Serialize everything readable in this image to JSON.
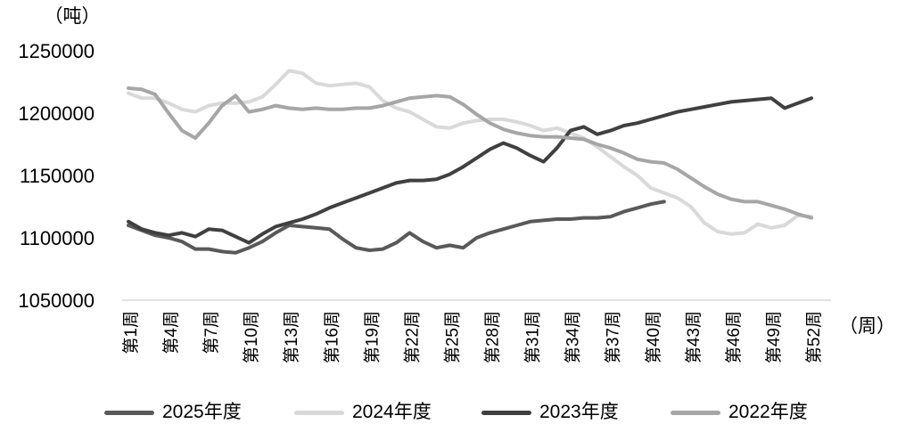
{
  "chart_data": {
    "type": "line",
    "title": "",
    "unit_y_label": "（吨）",
    "unit_x_label": "（周）",
    "grid": false,
    "legend_position": "bottom",
    "ylim": [
      1050000,
      1250000
    ],
    "y_ticks": [
      1050000,
      1100000,
      1150000,
      1200000,
      1250000
    ],
    "x_tick_weeks": [
      1,
      4,
      7,
      10,
      13,
      16,
      19,
      22,
      25,
      28,
      31,
      34,
      37,
      40,
      43,
      46,
      49,
      52
    ],
    "x_tick_labels": [
      "第1周",
      "第4周",
      "第7周",
      "第10周",
      "第13周",
      "第16周",
      "第19周",
      "第22周",
      "第25周",
      "第28周",
      "第31周",
      "第34周",
      "第37周",
      "第40周",
      "第43周",
      "第46周",
      "第49周",
      "第52周"
    ],
    "x_unit": "week",
    "x_start_week": 1,
    "series": [
      {
        "name": "2025年度",
        "color": "#595959",
        "values": [
          1110000,
          1106000,
          1102000,
          1100000,
          1097000,
          1091000,
          1091000,
          1089000,
          1088000,
          1092000,
          1097000,
          1104000,
          1110000,
          1109000,
          1108000,
          1107000,
          1099000,
          1092000,
          1090000,
          1091000,
          1096000,
          1104000,
          1097000,
          1092000,
          1094000,
          1092000,
          1100000,
          1104000,
          1107000,
          1110000,
          1113000,
          1114000,
          1115000,
          1115000,
          1116000,
          1116000,
          1117000,
          1121000,
          1124000,
          1127000,
          1129000
        ]
      },
      {
        "name": "2024年度",
        "color": "#D9D9D9",
        "values": [
          1216000,
          1212000,
          1212000,
          1208000,
          1203000,
          1201000,
          1206000,
          1208000,
          1208000,
          1209000,
          1213000,
          1223000,
          1234000,
          1232000,
          1224000,
          1222000,
          1223000,
          1224000,
          1221000,
          1210000,
          1204000,
          1201000,
          1195000,
          1189000,
          1188000,
          1192000,
          1194000,
          1195000,
          1195000,
          1193000,
          1190000,
          1186000,
          1188000,
          1184000,
          1180000,
          1173000,
          1165000,
          1157000,
          1150000,
          1140000,
          1136000,
          1132000,
          1125000,
          1112000,
          1105000,
          1103000,
          1104000,
          1111000,
          1108000,
          1110000,
          1118000,
          1117000
        ]
      },
      {
        "name": "2023年度",
        "color": "#404040",
        "values": [
          1113000,
          1107000,
          1104000,
          1102000,
          1104000,
          1101000,
          1107000,
          1106000,
          1101000,
          1096000,
          1103000,
          1109000,
          1112000,
          1115000,
          1119000,
          1124000,
          1128000,
          1132000,
          1136000,
          1140000,
          1144000,
          1146000,
          1146000,
          1147000,
          1151000,
          1157000,
          1164000,
          1171000,
          1176000,
          1172000,
          1166000,
          1161000,
          1172000,
          1186000,
          1189000,
          1183000,
          1186000,
          1190000,
          1192000,
          1195000,
          1198000,
          1201000,
          1203000,
          1205000,
          1207000,
          1209000,
          1210000,
          1211000,
          1212000,
          1204000,
          1208000,
          1212000
        ]
      },
      {
        "name": "2022年度",
        "color": "#A6A6A6",
        "values": [
          1220000,
          1219000,
          1215000,
          1200000,
          1186000,
          1180000,
          1192000,
          1206000,
          1214000,
          1201000,
          1203000,
          1206000,
          1204000,
          1203000,
          1204000,
          1203000,
          1203000,
          1204000,
          1204000,
          1206000,
          1209000,
          1212000,
          1213000,
          1214000,
          1213000,
          1207000,
          1199000,
          1192000,
          1187000,
          1184000,
          1182000,
          1181000,
          1181000,
          1180000,
          1179000,
          1175000,
          1172000,
          1168000,
          1163000,
          1161000,
          1160000,
          1155000,
          1148000,
          1141000,
          1135000,
          1131000,
          1129000,
          1129000,
          1126000,
          1123000,
          1119000,
          1116000
        ]
      }
    ],
    "axis_color": "#D9D9D9",
    "text_color": "#000000"
  },
  "legend": {
    "items": [
      {
        "label": "2025年度",
        "color": "#595959"
      },
      {
        "label": "2024年度",
        "color": "#D9D9D9"
      },
      {
        "label": "2023年度",
        "color": "#404040"
      },
      {
        "label": "2022年度",
        "color": "#A6A6A6"
      }
    ]
  }
}
